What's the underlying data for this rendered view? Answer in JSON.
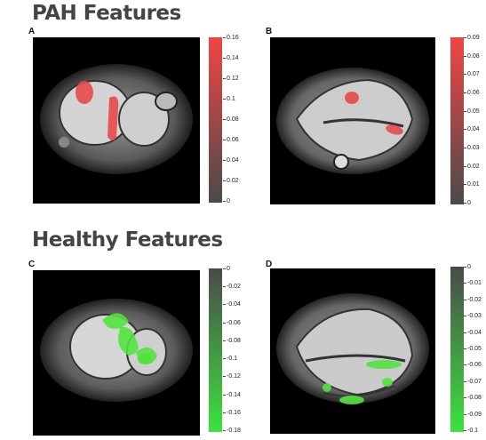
{
  "headings": {
    "pah": "PAH Features",
    "healthy": "Healthy Features"
  },
  "panels": [
    {
      "letter": "A",
      "colorbar": {
        "color_top": "#f04545",
        "color_bottom": "#4a4a4a",
        "ticks": [
          "0.16",
          "0.14",
          "0.12",
          "0.1",
          "0.08",
          "0.06",
          "0.04",
          "0.02",
          "0"
        ]
      }
    },
    {
      "letter": "B",
      "colorbar": {
        "color_top": "#f04545",
        "color_bottom": "#4a4a4a",
        "ticks": [
          "0.09",
          "0.08",
          "0.07",
          "0.06",
          "0.05",
          "0.04",
          "0.03",
          "0.02",
          "0.01",
          "0"
        ]
      }
    },
    {
      "letter": "C",
      "colorbar": {
        "color_top": "#4a4a4a",
        "color_bottom": "#3ee23e",
        "ticks": [
          "0",
          "-0.02",
          "-0.04",
          "-0.06",
          "-0.08",
          "-0.1",
          "-0.12",
          "-0.14",
          "-0.16",
          "-0.18"
        ]
      }
    },
    {
      "letter": "D",
      "colorbar": {
        "color_top": "#4a4a4a",
        "color_bottom": "#3ee23e",
        "ticks": [
          "0",
          "-0.01",
          "-0.02",
          "-0.03",
          "-0.04",
          "-0.05",
          "-0.06",
          "-0.07",
          "-0.08",
          "-0.09",
          "-0.1"
        ]
      }
    }
  ],
  "colors": {
    "pah_highlight": "#e84a4a",
    "healthy_highlight": "#52e33f",
    "heading": "#444444"
  }
}
